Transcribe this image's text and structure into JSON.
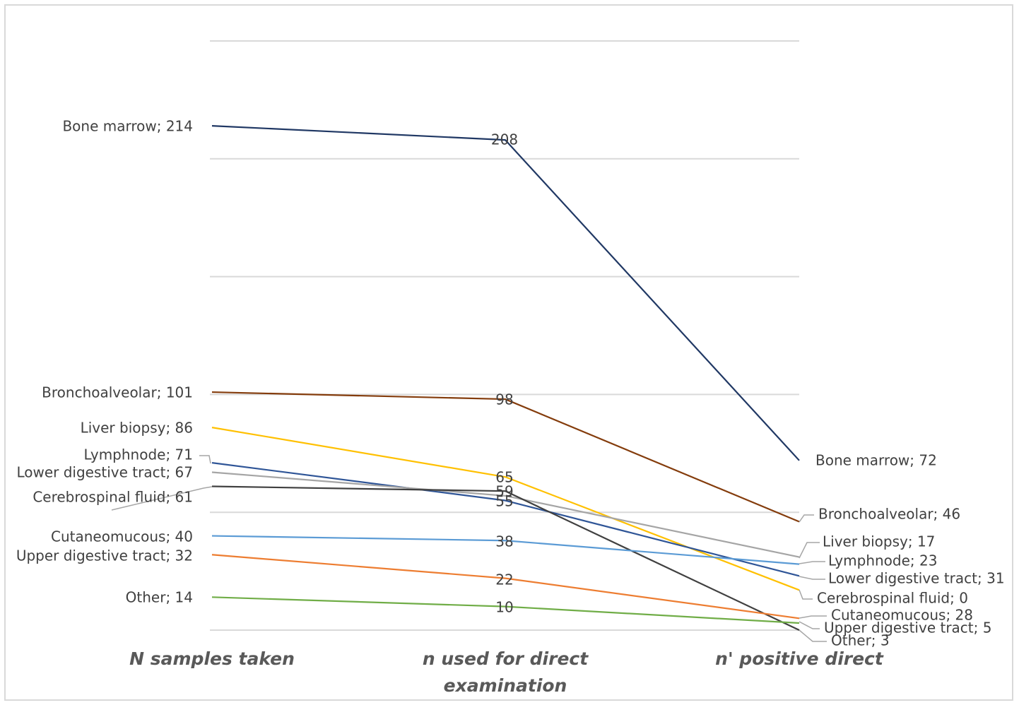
{
  "chart_data": {
    "type": "line",
    "title": "",
    "categories": [
      "N samples taken",
      "n used for direct examination",
      "n' positive direct"
    ],
    "category_lines": [
      [
        "N samples taken"
      ],
      [
        "n used for direct",
        "examination"
      ],
      [
        "n' positive direct"
      ]
    ],
    "ylim": [
      0,
      250
    ],
    "grid": true,
    "series": [
      {
        "name": "Bone marrow",
        "values": [
          214,
          208,
          72
        ],
        "color": "#203864",
        "labels": [
          "Bone marrow; 214",
          "208",
          "Bone marrow; 72"
        ]
      },
      {
        "name": "Bronchoalveolar",
        "values": [
          101,
          98,
          46
        ],
        "color": "#843c0c",
        "labels": [
          "Bronchoalveolar; 101",
          "98",
          "Bronchoalveolar; 46"
        ]
      },
      {
        "name": "Liver biopsy",
        "values": [
          86,
          65,
          17
        ],
        "color": "#ffc000",
        "labels": [
          "Liver biopsy; 86",
          "65",
          "Liver biopsy; 17"
        ]
      },
      {
        "name": "Lymphnode",
        "values": [
          71,
          55,
          23
        ],
        "color": "#2f5597",
        "labels": [
          "Lymphnode; 71",
          "55",
          "Lymphnode; 23"
        ]
      },
      {
        "name": "Lower digestive tract",
        "values": [
          67,
          57,
          31
        ],
        "color": "#a5a5a5",
        "labels": [
          "Lower digestive tract; 67",
          "",
          "Lower digestive tract; 31"
        ]
      },
      {
        "name": "Cerebrospinal fluid",
        "values": [
          61,
          59,
          0
        ],
        "color": "#404040",
        "labels": [
          "Cerebrospinal fluid; 61",
          "59",
          "Cerebrospinal fluid; 0"
        ]
      },
      {
        "name": "Cutaneomucous",
        "values": [
          40,
          38,
          28
        ],
        "color": "#5b9bd5",
        "labels": [
          "Cutaneomucous; 40",
          "38",
          "Cutaneomucous; 28"
        ]
      },
      {
        "name": "Upper digestive tract",
        "values": [
          32,
          22,
          5
        ],
        "color": "#ed7d31",
        "labels": [
          "Upper digestive tract; 32",
          "22",
          "Upper digestive tract; 5"
        ]
      },
      {
        "name": "Other",
        "values": [
          14,
          10,
          3
        ],
        "color": "#70ad47",
        "labels": [
          "Other; 14",
          "10",
          "Other; 3"
        ]
      }
    ]
  }
}
